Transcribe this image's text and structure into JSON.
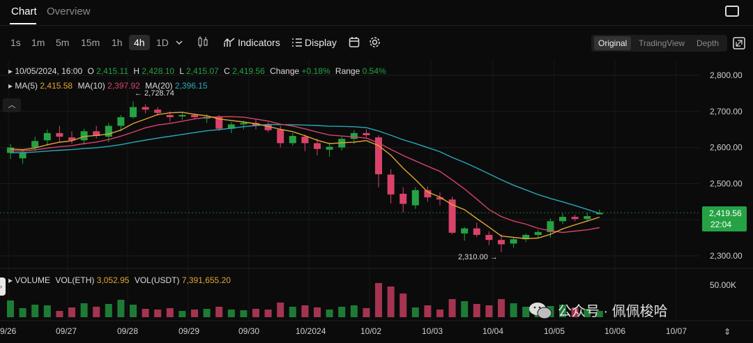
{
  "tabs": {
    "chart": "Chart",
    "overview": "Overview"
  },
  "timeframes": [
    "1s",
    "1m",
    "5m",
    "15m",
    "1h",
    "4h",
    "1D"
  ],
  "active_timeframe": "4h",
  "toolbar": {
    "indicators": "Indicators",
    "display": "Display"
  },
  "view_modes": [
    "Original",
    "TradingView",
    "Depth"
  ],
  "active_view": "Original",
  "ohlc": {
    "date": "10/05/2024, 16:00",
    "o_label": "O",
    "o": "2,415.11",
    "h_label": "H",
    "h": "2,428.10",
    "l_label": "L",
    "l": "2,415.07",
    "c_label": "C",
    "c": "2,419.56",
    "change_label": "Change",
    "change": "+0.18%",
    "range_label": "Range",
    "range": "0.54%"
  },
  "ma": {
    "ma5_label": "MA(5)",
    "ma5": "2,415.58",
    "ma10_label": "MA(10)",
    "ma10": "2,397.92",
    "ma20_label": "MA(20)",
    "ma20": "2,396.15"
  },
  "volume_bar": {
    "label": "VOLUME",
    "eth_label": "VOL(ETH)",
    "eth": "3,052.95",
    "usdt_label": "VOL(USDT)",
    "usdt": "7,391,655.20"
  },
  "y_axis": [
    "2,800.00",
    "2,700.00",
    "2,600.00",
    "2,500.00",
    "2,300.00"
  ],
  "volume_axis": "50.00K",
  "x_axis": [
    "9/26",
    "09/27",
    "09/28",
    "09/29",
    "09/30",
    "10/2024",
    "10/02",
    "10/03",
    "10/04",
    "10/05",
    "10/06",
    "10/07"
  ],
  "current_price": "2,419.56",
  "countdown": "22:04",
  "high_marker": "2,728.74",
  "low_marker": "2,310.00",
  "watermark": "公众号 · 佩佩梭哈",
  "colors": {
    "up": "#25a244",
    "down": "#d9436a",
    "ma5": "#e2a634",
    "ma10": "#d9436a",
    "ma20": "#2aa8b8"
  },
  "chart_data": {
    "type": "candlestick",
    "interval": "4h",
    "ylim": [
      2280,
      2820
    ],
    "candles": [
      [
        2585,
        2610,
        2568,
        2600
      ],
      [
        2570,
        2595,
        2555,
        2585
      ],
      [
        2600,
        2630,
        2590,
        2618
      ],
      [
        2620,
        2650,
        2605,
        2640
      ],
      [
        2640,
        2660,
        2615,
        2630
      ],
      [
        2628,
        2645,
        2610,
        2620
      ],
      [
        2620,
        2652,
        2608,
        2645
      ],
      [
        2645,
        2660,
        2625,
        2632
      ],
      [
        2630,
        2668,
        2615,
        2660
      ],
      [
        2660,
        2690,
        2645,
        2684
      ],
      [
        2684,
        2728,
        2680,
        2712
      ],
      [
        2712,
        2720,
        2695,
        2705
      ],
      [
        2705,
        2712,
        2688,
        2696
      ],
      [
        2690,
        2700,
        2672,
        2684
      ],
      [
        2686,
        2698,
        2676,
        2690
      ],
      [
        2690,
        2695,
        2678,
        2684
      ],
      [
        2680,
        2692,
        2668,
        2685
      ],
      [
        2684,
        2690,
        2646,
        2652
      ],
      [
        2652,
        2670,
        2640,
        2664
      ],
      [
        2664,
        2674,
        2650,
        2668
      ],
      [
        2668,
        2678,
        2650,
        2660
      ],
      [
        2664,
        2670,
        2642,
        2648
      ],
      [
        2650,
        2660,
        2600,
        2612
      ],
      [
        2612,
        2640,
        2605,
        2632
      ],
      [
        2630,
        2636,
        2590,
        2612
      ],
      [
        2612,
        2625,
        2578,
        2596
      ],
      [
        2594,
        2614,
        2575,
        2602
      ],
      [
        2600,
        2630,
        2592,
        2624
      ],
      [
        2624,
        2648,
        2610,
        2640
      ],
      [
        2640,
        2650,
        2628,
        2634
      ],
      [
        2628,
        2634,
        2490,
        2526
      ],
      [
        2525,
        2540,
        2445,
        2470
      ],
      [
        2472,
        2490,
        2420,
        2444
      ],
      [
        2440,
        2490,
        2430,
        2482
      ],
      [
        2482,
        2492,
        2450,
        2462
      ],
      [
        2462,
        2476,
        2440,
        2456
      ],
      [
        2456,
        2464,
        2360,
        2364
      ],
      [
        2362,
        2380,
        2342,
        2376
      ],
      [
        2376,
        2392,
        2352,
        2358
      ],
      [
        2358,
        2368,
        2330,
        2344
      ],
      [
        2344,
        2360,
        2310,
        2332
      ],
      [
        2334,
        2352,
        2322,
        2346
      ],
      [
        2346,
        2362,
        2338,
        2358
      ],
      [
        2358,
        2372,
        2350,
        2366
      ],
      [
        2366,
        2404,
        2350,
        2396
      ],
      [
        2396,
        2418,
        2388,
        2408
      ],
      [
        2408,
        2414,
        2396,
        2402
      ],
      [
        2402,
        2420,
        2395,
        2410
      ],
      [
        2415.11,
        2428.1,
        2415.07,
        2419.56
      ]
    ],
    "volumes": [
      24,
      13,
      18,
      17,
      9,
      14,
      20,
      15,
      19,
      25,
      18,
      12,
      11,
      13,
      9,
      11,
      12,
      15,
      11,
      10,
      12,
      11,
      21,
      15,
      17,
      14,
      11,
      15,
      17,
      13,
      49,
      44,
      34,
      14,
      17,
      11,
      26,
      23,
      19,
      17,
      26,
      20,
      15,
      11,
      16,
      18,
      14,
      12,
      9
    ]
  }
}
